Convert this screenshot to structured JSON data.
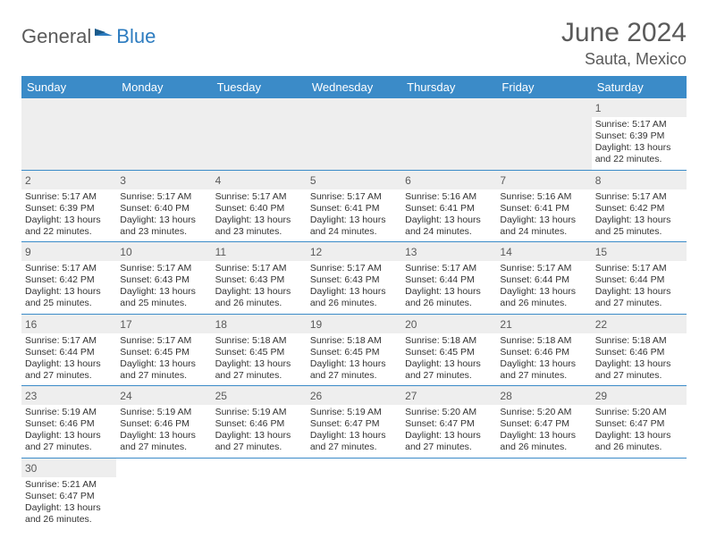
{
  "logo": {
    "general": "General",
    "blue": "Blue"
  },
  "title": "June 2024",
  "location": "Sauta, Mexico",
  "colors": {
    "header_bg": "#3b8bc8",
    "header_text": "#ffffff",
    "border": "#3b8bc8",
    "daynum_bg": "#eeeeee",
    "logo_general": "#5a5a5a",
    "logo_blue": "#2d7cc0",
    "title_color": "#5a5a5a",
    "text_color": "#333333"
  },
  "weekdays": [
    "Sunday",
    "Monday",
    "Tuesday",
    "Wednesday",
    "Thursday",
    "Friday",
    "Saturday"
  ],
  "days": {
    "1": {
      "sunrise": "5:17 AM",
      "sunset": "6:39 PM",
      "daylight": "13 hours and 22 minutes."
    },
    "2": {
      "sunrise": "5:17 AM",
      "sunset": "6:39 PM",
      "daylight": "13 hours and 22 minutes."
    },
    "3": {
      "sunrise": "5:17 AM",
      "sunset": "6:40 PM",
      "daylight": "13 hours and 23 minutes."
    },
    "4": {
      "sunrise": "5:17 AM",
      "sunset": "6:40 PM",
      "daylight": "13 hours and 23 minutes."
    },
    "5": {
      "sunrise": "5:17 AM",
      "sunset": "6:41 PM",
      "daylight": "13 hours and 24 minutes."
    },
    "6": {
      "sunrise": "5:16 AM",
      "sunset": "6:41 PM",
      "daylight": "13 hours and 24 minutes."
    },
    "7": {
      "sunrise": "5:16 AM",
      "sunset": "6:41 PM",
      "daylight": "13 hours and 24 minutes."
    },
    "8": {
      "sunrise": "5:17 AM",
      "sunset": "6:42 PM",
      "daylight": "13 hours and 25 minutes."
    },
    "9": {
      "sunrise": "5:17 AM",
      "sunset": "6:42 PM",
      "daylight": "13 hours and 25 minutes."
    },
    "10": {
      "sunrise": "5:17 AM",
      "sunset": "6:43 PM",
      "daylight": "13 hours and 25 minutes."
    },
    "11": {
      "sunrise": "5:17 AM",
      "sunset": "6:43 PM",
      "daylight": "13 hours and 26 minutes."
    },
    "12": {
      "sunrise": "5:17 AM",
      "sunset": "6:43 PM",
      "daylight": "13 hours and 26 minutes."
    },
    "13": {
      "sunrise": "5:17 AM",
      "sunset": "6:44 PM",
      "daylight": "13 hours and 26 minutes."
    },
    "14": {
      "sunrise": "5:17 AM",
      "sunset": "6:44 PM",
      "daylight": "13 hours and 26 minutes."
    },
    "15": {
      "sunrise": "5:17 AM",
      "sunset": "6:44 PM",
      "daylight": "13 hours and 27 minutes."
    },
    "16": {
      "sunrise": "5:17 AM",
      "sunset": "6:44 PM",
      "daylight": "13 hours and 27 minutes."
    },
    "17": {
      "sunrise": "5:17 AM",
      "sunset": "6:45 PM",
      "daylight": "13 hours and 27 minutes."
    },
    "18": {
      "sunrise": "5:18 AM",
      "sunset": "6:45 PM",
      "daylight": "13 hours and 27 minutes."
    },
    "19": {
      "sunrise": "5:18 AM",
      "sunset": "6:45 PM",
      "daylight": "13 hours and 27 minutes."
    },
    "20": {
      "sunrise": "5:18 AM",
      "sunset": "6:45 PM",
      "daylight": "13 hours and 27 minutes."
    },
    "21": {
      "sunrise": "5:18 AM",
      "sunset": "6:46 PM",
      "daylight": "13 hours and 27 minutes."
    },
    "22": {
      "sunrise": "5:18 AM",
      "sunset": "6:46 PM",
      "daylight": "13 hours and 27 minutes."
    },
    "23": {
      "sunrise": "5:19 AM",
      "sunset": "6:46 PM",
      "daylight": "13 hours and 27 minutes."
    },
    "24": {
      "sunrise": "5:19 AM",
      "sunset": "6:46 PM",
      "daylight": "13 hours and 27 minutes."
    },
    "25": {
      "sunrise": "5:19 AM",
      "sunset": "6:46 PM",
      "daylight": "13 hours and 27 minutes."
    },
    "26": {
      "sunrise": "5:19 AM",
      "sunset": "6:47 PM",
      "daylight": "13 hours and 27 minutes."
    },
    "27": {
      "sunrise": "5:20 AM",
      "sunset": "6:47 PM",
      "daylight": "13 hours and 27 minutes."
    },
    "28": {
      "sunrise": "5:20 AM",
      "sunset": "6:47 PM",
      "daylight": "13 hours and 26 minutes."
    },
    "29": {
      "sunrise": "5:20 AM",
      "sunset": "6:47 PM",
      "daylight": "13 hours and 26 minutes."
    },
    "30": {
      "sunrise": "5:21 AM",
      "sunset": "6:47 PM",
      "daylight": "13 hours and 26 minutes."
    }
  },
  "layout": {
    "first_weekday_index": 6,
    "num_days": 30,
    "labels": {
      "sunrise": "Sunrise:",
      "sunset": "Sunset:",
      "daylight": "Daylight:"
    }
  }
}
